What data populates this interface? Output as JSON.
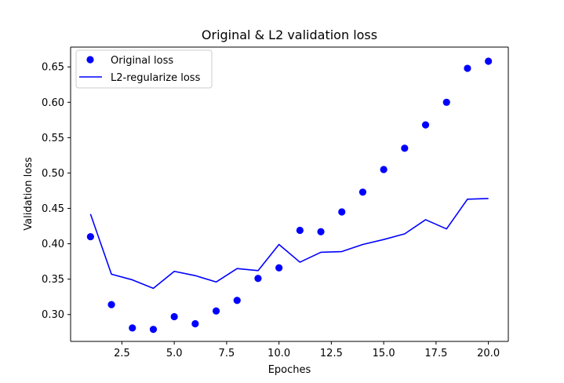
{
  "chart_data": {
    "type": "line",
    "title": "Original & L2 validation loss",
    "xlabel": "Epoches",
    "ylabel": "Validation loss",
    "xlim": [
      0.05,
      20.95
    ],
    "ylim": [
      0.262,
      0.678
    ],
    "xticks": [
      2.5,
      5.0,
      7.5,
      10.0,
      12.5,
      15.0,
      17.5,
      20.0
    ],
    "xtick_labels": [
      "2.5",
      "5.0",
      "7.5",
      "10.0",
      "12.5",
      "15.0",
      "17.5",
      "20.0"
    ],
    "yticks": [
      0.3,
      0.35,
      0.4,
      0.45,
      0.5,
      0.55,
      0.6,
      0.65
    ],
    "ytick_labels": [
      "0.30",
      "0.35",
      "0.40",
      "0.45",
      "0.50",
      "0.55",
      "0.60",
      "0.65"
    ],
    "grid": false,
    "legend_position": "top-left",
    "x": [
      1,
      2,
      3,
      4,
      5,
      6,
      7,
      8,
      9,
      10,
      11,
      12,
      13,
      14,
      15,
      16,
      17,
      18,
      19,
      20
    ],
    "series": [
      {
        "name": "Original loss",
        "style": "markers",
        "color": "#0000ff",
        "values": [
          0.41,
          0.314,
          0.281,
          0.279,
          0.297,
          0.287,
          0.305,
          0.32,
          0.351,
          0.366,
          0.419,
          0.417,
          0.445,
          0.473,
          0.505,
          0.535,
          0.568,
          0.6,
          0.648,
          0.658
        ]
      },
      {
        "name": "L2-regularize loss",
        "style": "line",
        "color": "#0000ff",
        "values": [
          0.442,
          0.357,
          0.349,
          0.337,
          0.361,
          0.355,
          0.346,
          0.365,
          0.362,
          0.399,
          0.374,
          0.388,
          0.389,
          0.399,
          0.406,
          0.414,
          0.434,
          0.421,
          0.463,
          0.464
        ]
      }
    ]
  }
}
